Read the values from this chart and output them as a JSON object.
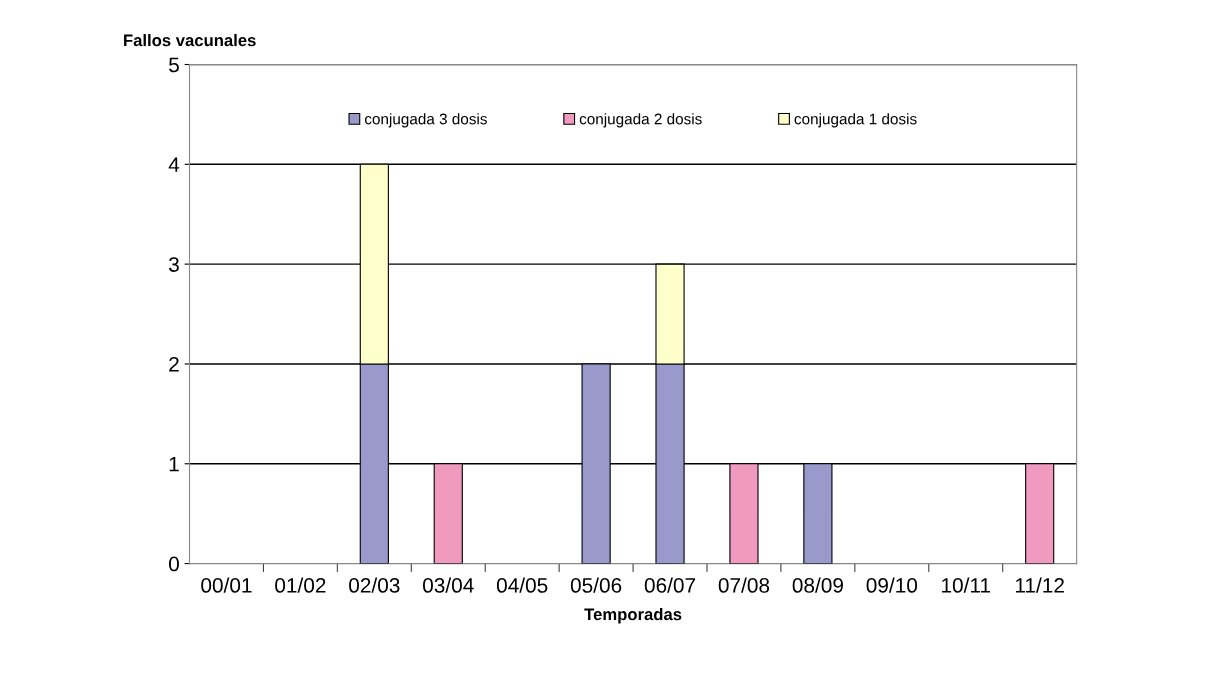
{
  "chart_data": {
    "type": "bar",
    "stacked": true,
    "xlabel": "Temporadas",
    "ylabel": "Fallos vacunales",
    "categories": [
      "00/01",
      "01/02",
      "02/03",
      "03/04",
      "04/05",
      "05/06",
      "06/07",
      "07/08",
      "08/09",
      "09/10",
      "10/11",
      "11/12"
    ],
    "series": [
      {
        "name": "conjugada 3 dosis",
        "color": "#9999cc",
        "values": [
          null,
          null,
          2,
          null,
          null,
          2,
          2,
          null,
          1,
          null,
          null,
          null
        ]
      },
      {
        "name": "conjugada 2 dosis",
        "color": "#f09ac0",
        "values": [
          null,
          null,
          null,
          1,
          null,
          null,
          null,
          1,
          null,
          null,
          null,
          1
        ]
      },
      {
        "name": "conjugada 1 dosis",
        "color": "#ffffcc",
        "values": [
          null,
          null,
          2,
          null,
          null,
          null,
          1,
          null,
          null,
          null,
          null,
          null
        ]
      }
    ],
    "ylim": [
      0,
      5
    ],
    "yticks": [
      0,
      1,
      2,
      3,
      4,
      5
    ],
    "grid": "y",
    "legend": "top"
  }
}
